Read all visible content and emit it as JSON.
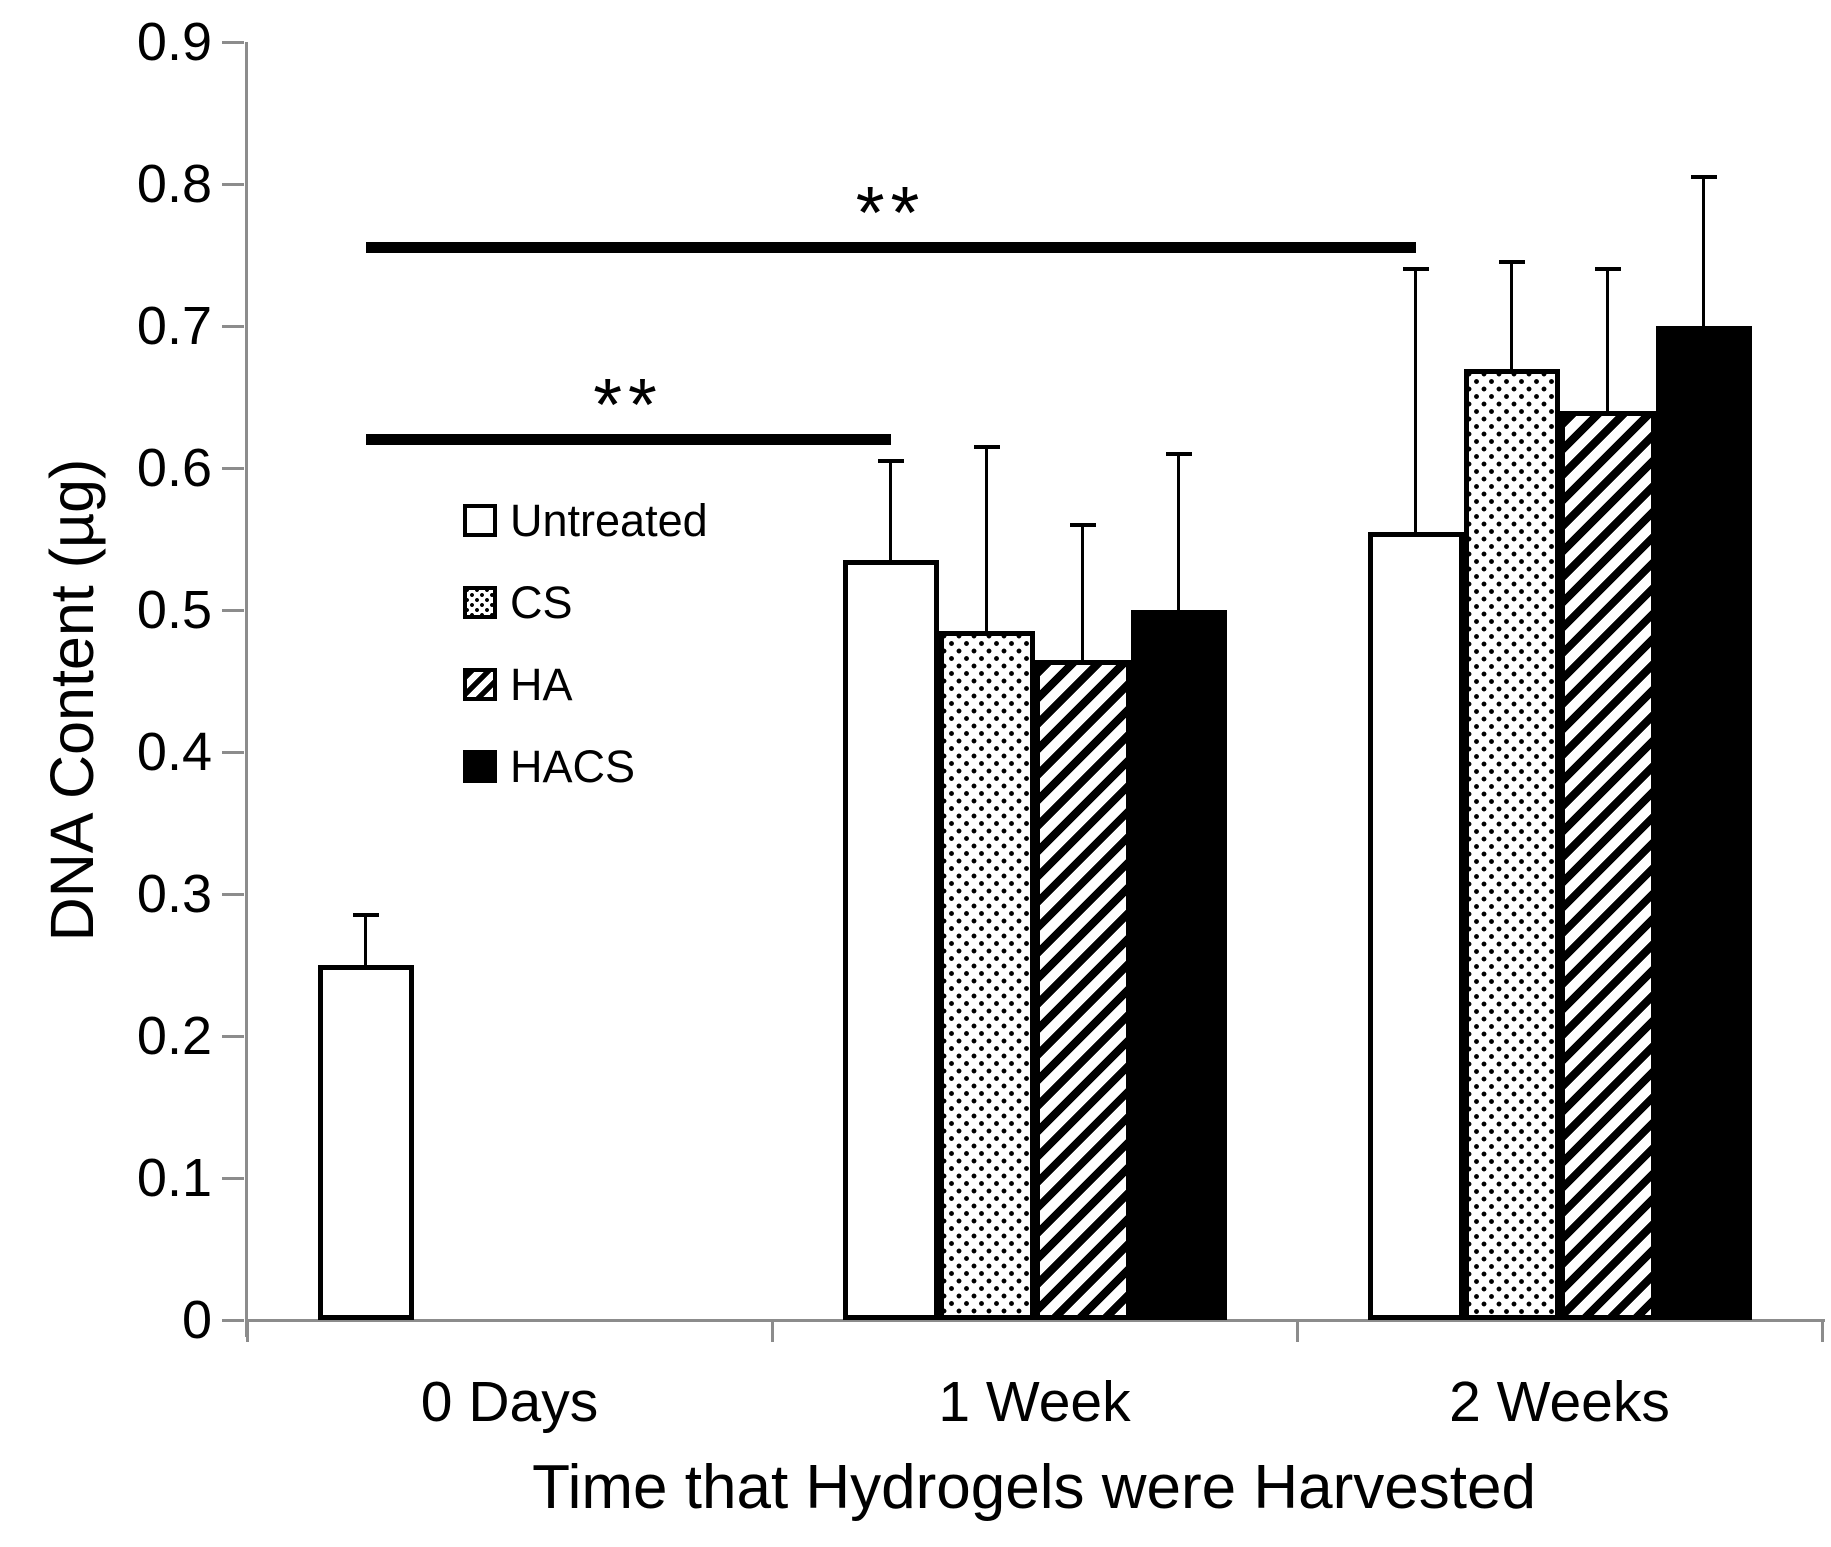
{
  "chart_data": {
    "type": "bar",
    "title": "",
    "xlabel": "Time that Hydrogels were Harvested",
    "ylabel": "DNA Content (µg)",
    "ylim": [
      0,
      0.9
    ],
    "ytick_step": 0.1,
    "ytick_labels": [
      "0.9",
      "0.8",
      "0.7",
      "0.6",
      "0.5",
      "0.4",
      "0.3",
      "0.2",
      "0.1",
      "0"
    ],
    "categories": [
      "0 Days",
      "1 Week",
      "2 Weeks"
    ],
    "series": [
      {
        "name": "Untreated",
        "pattern": "white",
        "values": [
          0.25,
          0.535,
          0.555
        ],
        "error_tops": [
          0.285,
          0.605,
          0.74
        ]
      },
      {
        "name": "CS",
        "pattern": "dots",
        "values": [
          null,
          0.485,
          0.67
        ],
        "error_tops": [
          null,
          0.615,
          0.745
        ]
      },
      {
        "name": "HA",
        "pattern": "diagonal-stripes",
        "values": [
          null,
          0.465,
          0.64
        ],
        "error_tops": [
          null,
          0.56,
          0.74
        ]
      },
      {
        "name": "HACS",
        "pattern": "solid-black",
        "values": [
          null,
          0.5,
          0.7
        ],
        "error_tops": [
          null,
          0.61,
          0.805
        ]
      }
    ],
    "significance_bars": [
      {
        "label": "**",
        "y": 0.62,
        "from": {
          "category": 0,
          "series": 0
        },
        "to": {
          "category": 1,
          "series": 0
        }
      },
      {
        "label": "**",
        "y": 0.755,
        "from": {
          "category": 0,
          "series": 0
        },
        "to": {
          "category": 2,
          "series": 0
        }
      }
    ],
    "legend_position": "inside-upper-left",
    "grid": false
  },
  "colors": {
    "foreground": "#000000",
    "axis_line": "#8c8c8c",
    "background": "#ffffff"
  }
}
